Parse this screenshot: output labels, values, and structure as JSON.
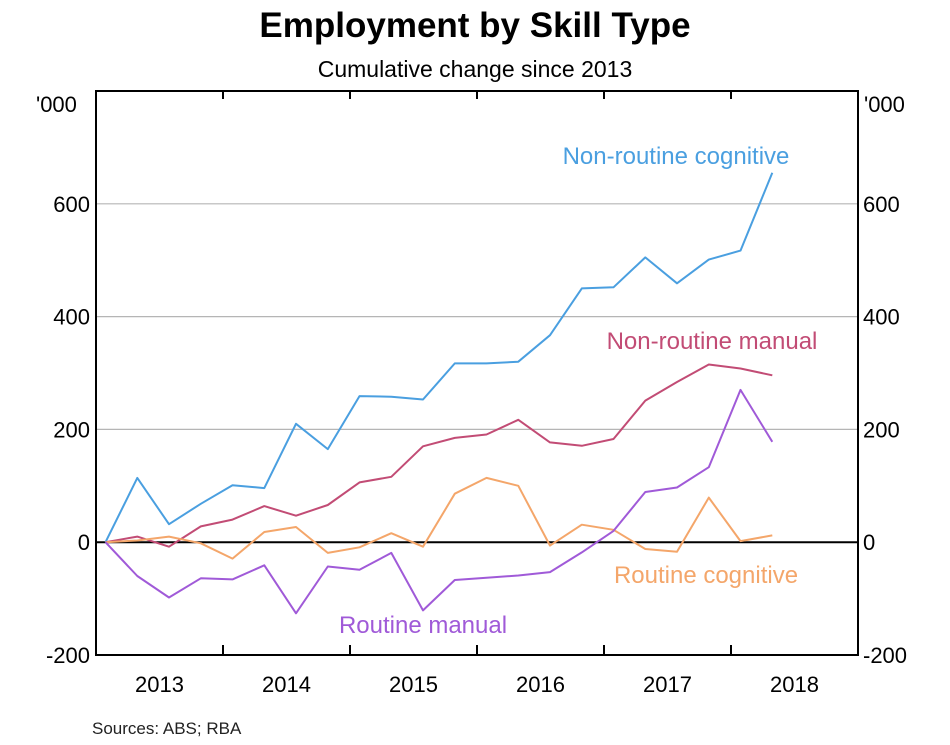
{
  "chart_data": {
    "type": "line",
    "title": "Employment by Skill Type",
    "subtitle": "Cumulative change since 2013",
    "ylabel_left": "'000",
    "ylabel_right": "'000",
    "ylim": [
      -200,
      800
    ],
    "yticks": [
      -200,
      0,
      200,
      400,
      600
    ],
    "xlim": [
      2012.6,
      2018.6
    ],
    "xgrid_boundaries": [
      2013.6,
      2014.6,
      2015.6,
      2016.6,
      2017.6
    ],
    "xtick_labels": [
      {
        "label": "2013",
        "at": 2013.1
      },
      {
        "label": "2014",
        "at": 2014.1
      },
      {
        "label": "2015",
        "at": 2015.1
      },
      {
        "label": "2016",
        "at": 2016.1
      },
      {
        "label": "2017",
        "at": 2017.1
      },
      {
        "label": "2018",
        "at": 2018.1
      }
    ],
    "grid": true,
    "x": [
      2012.675,
      2012.925,
      2013.175,
      2013.425,
      2013.675,
      2013.925,
      2014.175,
      2014.425,
      2014.675,
      2014.925,
      2015.175,
      2015.425,
      2015.675,
      2015.925,
      2016.175,
      2016.425,
      2016.675,
      2016.925,
      2017.175,
      2017.425,
      2017.675,
      2017.925,
      2018.175
    ],
    "series": [
      {
        "name": "Non-routine cognitive",
        "color": "#4a9fe0",
        "values": [
          0,
          114,
          32,
          68,
          101,
          96,
          210,
          165,
          259,
          258,
          253,
          317,
          317,
          320,
          367,
          450,
          452,
          505,
          459,
          501,
          517,
          655,
          null
        ]
      },
      {
        "name": "Non-routine manual",
        "color": "#c24c75",
        "values": [
          0,
          10,
          -8,
          28,
          40,
          64,
          47,
          66,
          106,
          116,
          170,
          185,
          191,
          217,
          177,
          171,
          183,
          251,
          284,
          315,
          308,
          296,
          null
        ]
      },
      {
        "name": "Routine cognitive",
        "color": "#f4a66a",
        "values": [
          0,
          3,
          10,
          -2,
          -29,
          18,
          27,
          -19,
          -9,
          16,
          -8,
          86,
          114,
          100,
          -6,
          31,
          22,
          -12,
          -17,
          79,
          2,
          12,
          null
        ]
      },
      {
        "name": "Routine manual",
        "color": "#a05ad8",
        "values": [
          0,
          -60,
          -98,
          -64,
          -66,
          -41,
          -126,
          -43,
          -49,
          -19,
          -121,
          -67,
          -63,
          -59,
          -53,
          -18,
          20,
          89,
          97,
          133,
          270,
          178,
          null
        ]
      }
    ]
  },
  "series_labels": {
    "non_routine_cognitive": "Non-routine cognitive",
    "non_routine_manual": "Non-routine manual",
    "routine_cognitive": "Routine cognitive",
    "routine_manual": "Routine manual"
  },
  "source_note": "Sources:  ABS; RBA",
  "colors": {
    "axis": "#000000",
    "grid": "#b5b5b5"
  }
}
